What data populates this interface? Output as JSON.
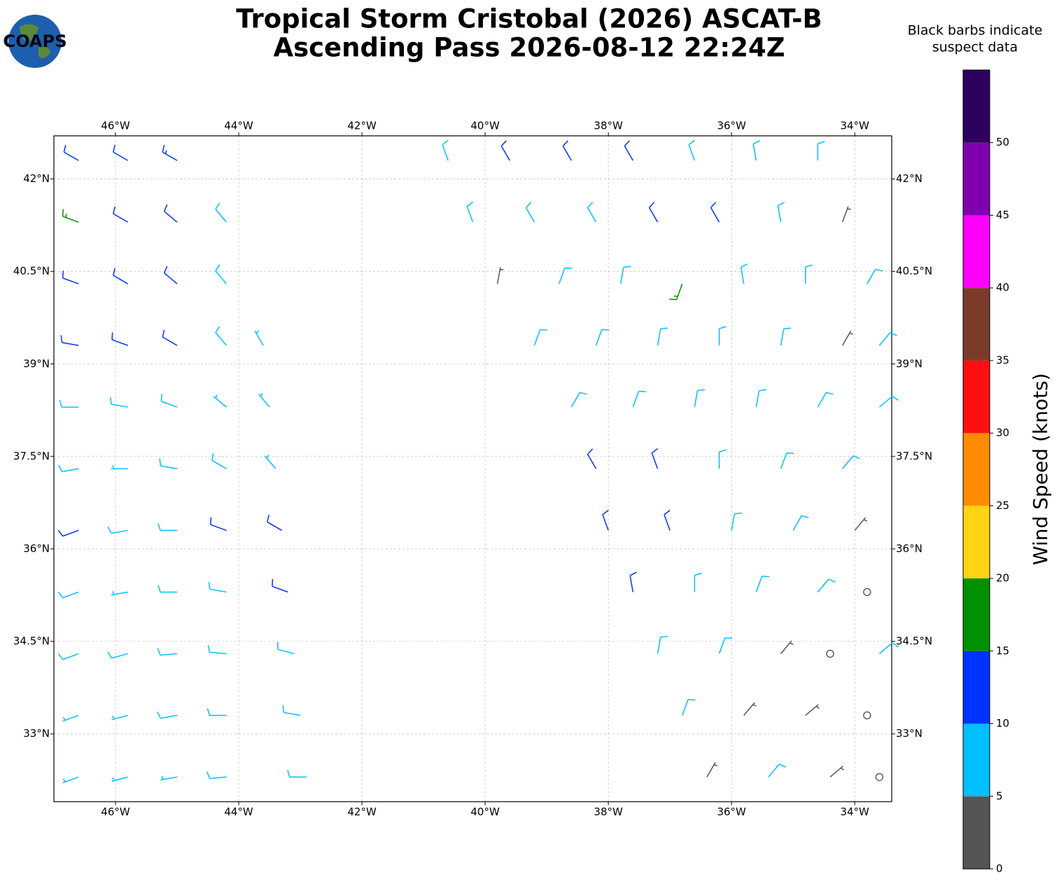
{
  "chart_data": {
    "type": "barbs",
    "title_lines": [
      "Tropical Storm Cristobal (2026) ASCAT-B",
      "Ascending Pass 2026-08-12 22:24Z"
    ],
    "note_lines": [
      "Black barbs indicate",
      "suspect data"
    ],
    "logo_text": "COAPS",
    "colorbar_label": "Wind Speed (knots)",
    "xlim": [
      -47.0,
      -33.4
    ],
    "ylim": [
      31.9,
      42.7
    ],
    "grid": true,
    "xticks": [
      {
        "value": -46,
        "label": "46°W"
      },
      {
        "value": -44,
        "label": "44°W"
      },
      {
        "value": -42,
        "label": "42°W"
      },
      {
        "value": -40,
        "label": "40°W"
      },
      {
        "value": -38,
        "label": "38°W"
      },
      {
        "value": -36,
        "label": "36°W"
      },
      {
        "value": -34,
        "label": "34°W"
      }
    ],
    "yticks": [
      {
        "value": 33,
        "label": "33°N"
      },
      {
        "value": 34.5,
        "label": "34.5°N"
      },
      {
        "value": 36,
        "label": "36°N"
      },
      {
        "value": 37.5,
        "label": "37.5°N"
      },
      {
        "value": 39,
        "label": "39°N"
      },
      {
        "value": 40.5,
        "label": "40.5°N"
      },
      {
        "value": 42,
        "label": "42°N"
      }
    ],
    "colorbar": {
      "bounds": [
        0,
        5,
        10,
        15,
        20,
        25,
        30,
        35,
        40,
        45,
        50,
        55
      ],
      "colors": [
        "#555555",
        "#00bfff",
        "#0033ff",
        "#009000",
        "#ffd414",
        "#ff8c00",
        "#ff1010",
        "#7b3b2b",
        "#ff00ff",
        "#8000b0",
        "#2d0060"
      ],
      "ticks": [
        0,
        5,
        10,
        15,
        20,
        25,
        30,
        35,
        40,
        45,
        50
      ]
    },
    "barbs": [
      {
        "lon": -46.6,
        "lat": 42.3,
        "kt": 12,
        "dir": 300
      },
      {
        "lon": -45.8,
        "lat": 42.3,
        "kt": 12,
        "dir": 300
      },
      {
        "lon": -45.0,
        "lat": 42.3,
        "kt": 13,
        "dir": 300
      },
      {
        "lon": -46.6,
        "lat": 41.3,
        "kt": 16,
        "dir": 290
      },
      {
        "lon": -45.8,
        "lat": 41.3,
        "kt": 12,
        "dir": 300
      },
      {
        "lon": -45.0,
        "lat": 41.3,
        "kt": 12,
        "dir": 310
      },
      {
        "lon": -44.2,
        "lat": 41.3,
        "kt": 9,
        "dir": 320
      },
      {
        "lon": -46.6,
        "lat": 40.3,
        "kt": 12,
        "dir": 290
      },
      {
        "lon": -45.8,
        "lat": 40.3,
        "kt": 11,
        "dir": 300
      },
      {
        "lon": -45.0,
        "lat": 40.3,
        "kt": 10,
        "dir": 310
      },
      {
        "lon": -44.2,
        "lat": 40.3,
        "kt": 8,
        "dir": 320
      },
      {
        "lon": -46.6,
        "lat": 39.3,
        "kt": 11,
        "dir": 280
      },
      {
        "lon": -45.8,
        "lat": 39.3,
        "kt": 12,
        "dir": 290
      },
      {
        "lon": -45.0,
        "lat": 39.3,
        "kt": 11,
        "dir": 300
      },
      {
        "lon": -44.2,
        "lat": 39.3,
        "kt": 8,
        "dir": 320
      },
      {
        "lon": -43.6,
        "lat": 39.3,
        "kt": 7,
        "dir": 330
      },
      {
        "lon": -46.6,
        "lat": 38.3,
        "kt": 9,
        "dir": 270
      },
      {
        "lon": -45.8,
        "lat": 38.3,
        "kt": 8,
        "dir": 280
      },
      {
        "lon": -45.0,
        "lat": 38.3,
        "kt": 8,
        "dir": 290
      },
      {
        "lon": -44.2,
        "lat": 38.3,
        "kt": 7,
        "dir": 310
      },
      {
        "lon": -43.5,
        "lat": 38.3,
        "kt": 7,
        "dir": 320
      },
      {
        "lon": -46.6,
        "lat": 37.3,
        "kt": 8,
        "dir": 260
      },
      {
        "lon": -45.8,
        "lat": 37.3,
        "kt": 7,
        "dir": 270
      },
      {
        "lon": -45.0,
        "lat": 37.3,
        "kt": 8,
        "dir": 280
      },
      {
        "lon": -44.2,
        "lat": 37.3,
        "kt": 8,
        "dir": 300
      },
      {
        "lon": -43.4,
        "lat": 37.3,
        "kt": 7,
        "dir": 320
      },
      {
        "lon": -46.6,
        "lat": 36.3,
        "kt": 12,
        "dir": 250
      },
      {
        "lon": -45.8,
        "lat": 36.3,
        "kt": 8,
        "dir": 260
      },
      {
        "lon": -45.0,
        "lat": 36.3,
        "kt": 8,
        "dir": 270
      },
      {
        "lon": -44.2,
        "lat": 36.3,
        "kt": 11,
        "dir": 290
      },
      {
        "lon": -43.3,
        "lat": 36.3,
        "kt": 12,
        "dir": 300
      },
      {
        "lon": -46.6,
        "lat": 35.3,
        "kt": 8,
        "dir": 250
      },
      {
        "lon": -45.8,
        "lat": 35.3,
        "kt": 7,
        "dir": 260
      },
      {
        "lon": -45.0,
        "lat": 35.3,
        "kt": 8,
        "dir": 270
      },
      {
        "lon": -44.2,
        "lat": 35.3,
        "kt": 9,
        "dir": 280
      },
      {
        "lon": -43.2,
        "lat": 35.3,
        "kt": 11,
        "dir": 290
      },
      {
        "lon": -46.6,
        "lat": 34.3,
        "kt": 8,
        "dir": 250
      },
      {
        "lon": -45.8,
        "lat": 34.3,
        "kt": 8,
        "dir": 255
      },
      {
        "lon": -45.0,
        "lat": 34.3,
        "kt": 9,
        "dir": 265
      },
      {
        "lon": -44.2,
        "lat": 34.3,
        "kt": 8,
        "dir": 275
      },
      {
        "lon": -43.1,
        "lat": 34.3,
        "kt": 9,
        "dir": 285
      },
      {
        "lon": -46.6,
        "lat": 33.3,
        "kt": 7,
        "dir": 250
      },
      {
        "lon": -45.8,
        "lat": 33.3,
        "kt": 7,
        "dir": 255
      },
      {
        "lon": -45.0,
        "lat": 33.3,
        "kt": 8,
        "dir": 260
      },
      {
        "lon": -44.2,
        "lat": 33.3,
        "kt": 8,
        "dir": 270
      },
      {
        "lon": -43.0,
        "lat": 33.3,
        "kt": 8,
        "dir": 280
      },
      {
        "lon": -46.6,
        "lat": 32.3,
        "kt": 7,
        "dir": 250
      },
      {
        "lon": -45.8,
        "lat": 32.3,
        "kt": 7,
        "dir": 255
      },
      {
        "lon": -45.0,
        "lat": 32.3,
        "kt": 7,
        "dir": 260
      },
      {
        "lon": -44.2,
        "lat": 32.3,
        "kt": 8,
        "dir": 265
      },
      {
        "lon": -42.9,
        "lat": 32.3,
        "kt": 8,
        "dir": 270
      },
      {
        "lon": -40.6,
        "lat": 42.3,
        "kt": 8,
        "dir": 340
      },
      {
        "lon": -39.6,
        "lat": 42.3,
        "kt": 12,
        "dir": 330
      },
      {
        "lon": -38.6,
        "lat": 42.3,
        "kt": 12,
        "dir": 330
      },
      {
        "lon": -37.6,
        "lat": 42.3,
        "kt": 11,
        "dir": 330
      },
      {
        "lon": -36.6,
        "lat": 42.3,
        "kt": 8,
        "dir": 340
      },
      {
        "lon": -35.6,
        "lat": 42.3,
        "kt": 8,
        "dir": 350
      },
      {
        "lon": -34.6,
        "lat": 42.3,
        "kt": 8,
        "dir": 360
      },
      {
        "lon": -40.2,
        "lat": 41.3,
        "kt": 8,
        "dir": 340
      },
      {
        "lon": -39.2,
        "lat": 41.3,
        "kt": 9,
        "dir": 330
      },
      {
        "lon": -38.2,
        "lat": 41.3,
        "kt": 9,
        "dir": 330
      },
      {
        "lon": -37.2,
        "lat": 41.3,
        "kt": 11,
        "dir": 330
      },
      {
        "lon": -36.2,
        "lat": 41.3,
        "kt": 12,
        "dir": 330
      },
      {
        "lon": -35.2,
        "lat": 41.3,
        "kt": 8,
        "dir": 350
      },
      {
        "lon": -34.2,
        "lat": 41.3,
        "kt": 3,
        "dir": 20
      },
      {
        "lon": -39.8,
        "lat": 40.3,
        "kt": 3,
        "dir": 10
      },
      {
        "lon": -38.8,
        "lat": 40.3,
        "kt": 8,
        "dir": 20
      },
      {
        "lon": -37.8,
        "lat": 40.3,
        "kt": 8,
        "dir": 10
      },
      {
        "lon": -36.8,
        "lat": 40.3,
        "kt": 16,
        "dir": 200
      },
      {
        "lon": -35.8,
        "lat": 40.3,
        "kt": 8,
        "dir": 350
      },
      {
        "lon": -34.8,
        "lat": 40.3,
        "kt": 8,
        "dir": 0
      },
      {
        "lon": -33.8,
        "lat": 40.3,
        "kt": 8,
        "dir": 30
      },
      {
        "lon": -39.2,
        "lat": 39.3,
        "kt": 8,
        "dir": 20
      },
      {
        "lon": -38.2,
        "lat": 39.3,
        "kt": 8,
        "dir": 20
      },
      {
        "lon": -37.2,
        "lat": 39.3,
        "kt": 8,
        "dir": 10
      },
      {
        "lon": -36.2,
        "lat": 39.3,
        "kt": 8,
        "dir": 0
      },
      {
        "lon": -35.2,
        "lat": 39.3,
        "kt": 8,
        "dir": 10
      },
      {
        "lon": -34.2,
        "lat": 39.3,
        "kt": 3,
        "dir": 30
      },
      {
        "lon": -33.6,
        "lat": 39.3,
        "kt": 8,
        "dir": 40
      },
      {
        "lon": -38.6,
        "lat": 38.3,
        "kt": 8,
        "dir": 30
      },
      {
        "lon": -37.6,
        "lat": 38.3,
        "kt": 8,
        "dir": 20
      },
      {
        "lon": -36.6,
        "lat": 38.3,
        "kt": 8,
        "dir": 10
      },
      {
        "lon": -35.6,
        "lat": 38.3,
        "kt": 8,
        "dir": 10
      },
      {
        "lon": -34.6,
        "lat": 38.3,
        "kt": 8,
        "dir": 30
      },
      {
        "lon": -33.6,
        "lat": 38.3,
        "kt": 8,
        "dir": 50
      },
      {
        "lon": -38.2,
        "lat": 37.3,
        "kt": 12,
        "dir": 330
      },
      {
        "lon": -37.2,
        "lat": 37.3,
        "kt": 11,
        "dir": 340
      },
      {
        "lon": -36.2,
        "lat": 37.3,
        "kt": 8,
        "dir": 0
      },
      {
        "lon": -35.2,
        "lat": 37.3,
        "kt": 8,
        "dir": 20
      },
      {
        "lon": -34.2,
        "lat": 37.3,
        "kt": 8,
        "dir": 40
      },
      {
        "lon": -38.0,
        "lat": 36.3,
        "kt": 12,
        "dir": 340
      },
      {
        "lon": -37.0,
        "lat": 36.3,
        "kt": 12,
        "dir": 340
      },
      {
        "lon": -36.0,
        "lat": 36.3,
        "kt": 8,
        "dir": 10
      },
      {
        "lon": -35.0,
        "lat": 36.3,
        "kt": 8,
        "dir": 30
      },
      {
        "lon": -34.0,
        "lat": 36.3,
        "kt": 3,
        "dir": 40
      },
      {
        "lon": -37.6,
        "lat": 35.3,
        "kt": 11,
        "dir": 350
      },
      {
        "lon": -36.6,
        "lat": 35.3,
        "kt": 8,
        "dir": 0
      },
      {
        "lon": -35.6,
        "lat": 35.3,
        "kt": 8,
        "dir": 20
      },
      {
        "lon": -34.6,
        "lat": 35.3,
        "kt": 8,
        "dir": 40
      },
      {
        "lon": -33.8,
        "lat": 35.3,
        "kt": 1,
        "dir": 0
      },
      {
        "lon": -37.2,
        "lat": 34.3,
        "kt": 8,
        "dir": 10
      },
      {
        "lon": -36.2,
        "lat": 34.3,
        "kt": 8,
        "dir": 20
      },
      {
        "lon": -35.2,
        "lat": 34.3,
        "kt": 3,
        "dir": 40
      },
      {
        "lon": -34.4,
        "lat": 34.3,
        "kt": 1,
        "dir": 0
      },
      {
        "lon": -33.6,
        "lat": 34.3,
        "kt": 8,
        "dir": 50
      },
      {
        "lon": -36.8,
        "lat": 33.3,
        "kt": 8,
        "dir": 20
      },
      {
        "lon": -35.8,
        "lat": 33.3,
        "kt": 3,
        "dir": 40
      },
      {
        "lon": -34.8,
        "lat": 33.3,
        "kt": 3,
        "dir": 50
      },
      {
        "lon": -33.8,
        "lat": 33.3,
        "kt": 1,
        "dir": 0
      },
      {
        "lon": -36.4,
        "lat": 32.3,
        "kt": 3,
        "dir": 30
      },
      {
        "lon": -35.4,
        "lat": 32.3,
        "kt": 8,
        "dir": 40
      },
      {
        "lon": -34.4,
        "lat": 32.3,
        "kt": 3,
        "dir": 50
      },
      {
        "lon": -33.6,
        "lat": 32.3,
        "kt": 1,
        "dir": 0
      }
    ]
  }
}
